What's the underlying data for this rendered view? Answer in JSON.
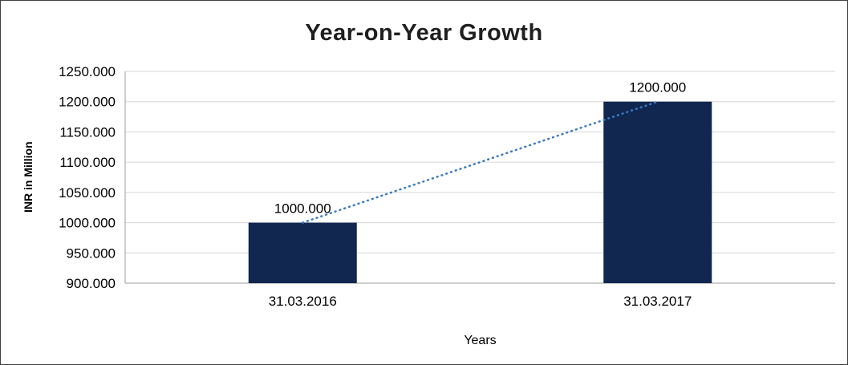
{
  "chart_data": {
    "type": "bar",
    "title": "Year-on-Year Growth",
    "xlabel": "Years",
    "ylabel": "INR in Million",
    "categories": [
      "31.03.2016",
      "31.03.2017"
    ],
    "values": [
      1000,
      1200
    ],
    "value_labels": [
      "1000.000",
      "1200.000"
    ],
    "ylim": [
      900,
      1250
    ],
    "yticks": [
      900,
      950,
      1000,
      1050,
      1100,
      1150,
      1200,
      1250
    ],
    "ytick_labels": [
      "900.000",
      "950.000",
      "1000.000",
      "1050.000",
      "1100.000",
      "1150.000",
      "1200.000",
      "1250.000"
    ],
    "grid": "horizontal",
    "legend": "none",
    "trendline": {
      "style": "dotted",
      "from": [
        0,
        1000
      ],
      "to": [
        1,
        1200
      ],
      "color": "#3a7abf"
    },
    "colors": {
      "bar": "#112750",
      "grid": "#d6d6d6",
      "axis": "#9c9c9c",
      "text": "#000000",
      "title": "#1f1f1f",
      "border": "#404040"
    }
  }
}
